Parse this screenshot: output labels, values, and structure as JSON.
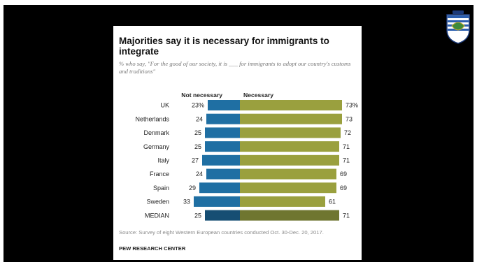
{
  "chart_data": {
    "type": "bar",
    "title": "Majorities say it is necessary for immigrants to integrate",
    "subtitle": "% who say, \"For the good of our society, it is ___ for immigrants to adopt our country's customs and traditions\"",
    "categories": [
      "UK",
      "Netherlands",
      "Denmark",
      "Germany",
      "Italy",
      "France",
      "Spain",
      "Sweden",
      "MEDIAN"
    ],
    "series": [
      {
        "name": "Not necessary",
        "values": [
          23,
          24,
          25,
          25,
          27,
          24,
          29,
          33,
          25
        ],
        "labels": [
          "23%",
          "24",
          "25",
          "25",
          "27",
          "24",
          "29",
          "33",
          "25"
        ]
      },
      {
        "name": "Necessary",
        "values": [
          73,
          73,
          72,
          71,
          71,
          69,
          69,
          61,
          71
        ],
        "labels": [
          "73%",
          "73",
          "72",
          "71",
          "71",
          "69",
          "69",
          "61",
          "71"
        ]
      }
    ],
    "colors": {
      "not_necessary": "#1f6fa3",
      "necessary": "#9aa03e",
      "median_not_necessary": "#164e73",
      "median_necessary": "#6f7630"
    },
    "source": "Source: Survey of eight Western European countries conducted Oct. 30-Dec. 20, 2017.",
    "organization": "PEW RESEARCH CENTER"
  },
  "logo": {
    "icon": "crest-icon"
  }
}
